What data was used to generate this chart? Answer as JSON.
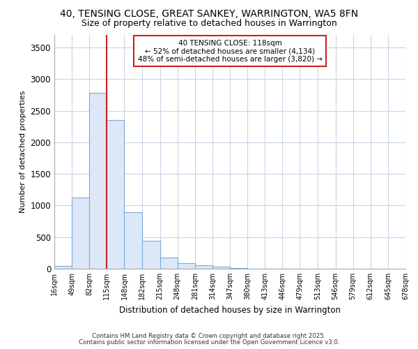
{
  "title1": "40, TENSING CLOSE, GREAT SANKEY, WARRINGTON, WA5 8FN",
  "title2": "Size of property relative to detached houses in Warrington",
  "xlabel": "Distribution of detached houses by size in Warrington",
  "ylabel": "Number of detached properties",
  "bin_edges": [
    16,
    49,
    82,
    115,
    148,
    182,
    215,
    248,
    281,
    314,
    347,
    380,
    413,
    446,
    479,
    513,
    546,
    579,
    612,
    645,
    678
  ],
  "bar_heights": [
    45,
    1130,
    2780,
    2350,
    890,
    440,
    175,
    90,
    55,
    35,
    15,
    5,
    2,
    1,
    0,
    0,
    0,
    0,
    0,
    0
  ],
  "bar_color": "#dce8f8",
  "bar_edge_color": "#7aaad8",
  "vline_x": 115,
  "vline_color": "#cc2222",
  "annotation_title": "40 TENSING CLOSE: 118sqm",
  "annotation_line2": "← 52% of detached houses are smaller (4,134)",
  "annotation_line3": "48% of semi-detached houses are larger (3,820) →",
  "annotation_box_color": "#cc2222",
  "ylim": [
    0,
    3700
  ],
  "yticks": [
    0,
    500,
    1000,
    1500,
    2000,
    2500,
    3000,
    3500
  ],
  "tick_labels": [
    "16sqm",
    "49sqm",
    "82sqm",
    "115sqm",
    "148sqm",
    "182sqm",
    "215sqm",
    "248sqm",
    "281sqm",
    "314sqm",
    "347sqm",
    "380sqm",
    "413sqm",
    "446sqm",
    "479sqm",
    "513sqm",
    "546sqm",
    "579sqm",
    "612sqm",
    "645sqm",
    "678sqm"
  ],
  "footer1": "Contains HM Land Registry data © Crown copyright and database right 2025.",
  "footer2": "Contains public sector information licensed under the Open Government Licence v3.0.",
  "bg_color": "#ffffff",
  "plot_bg_color": "#ffffff",
  "grid_color": "#c8d4e8"
}
